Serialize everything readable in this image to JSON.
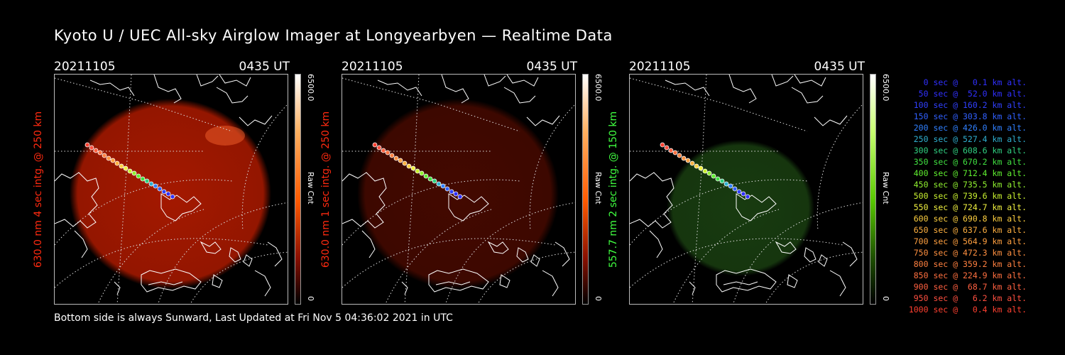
{
  "title": "Kyoto U / UEC All-sky Airglow Imager at Longyearbyen — Realtime Data",
  "footer": "Bottom side is always Sunward, Last Updated at Fri Nov  5 04:36:02 2021 in UTC",
  "panels": [
    {
      "date": "20211105",
      "time": "0435 UT",
      "label": "630.0 nm 4 sec intg. @ 250 km",
      "label_color": "#ff2a10",
      "scale_max": "6500.0",
      "scale_unit": "Raw Cnt",
      "scale_min": "0",
      "gradient": "linear-gradient(to bottom,#ffffff,#ffb060 25%,#ff5a00 55%,#8a1000 80%,#000000)",
      "glow_color": "#c81e00",
      "glow_opacity": 0.82
    },
    {
      "date": "20211105",
      "time": "0435 UT",
      "label": "630.0 nm 1 sec intg. @ 250 km",
      "label_color": "#ff2a10",
      "scale_max": "6500.0",
      "scale_unit": "Raw Cnt",
      "scale_min": "0",
      "gradient": "linear-gradient(to bottom,#ffffff,#ffb060 25%,#ff5a00 55%,#8a1000 80%,#000000)",
      "glow_color": "#5a0c00",
      "glow_opacity": 0.75
    },
    {
      "date": "20211105",
      "time": "0435 UT",
      "label": "557.7 nm 2 sec intg. @ 150 km",
      "label_color": "#40ff40",
      "scale_max": "6500.0",
      "scale_unit": "Raw Cnt",
      "scale_min": "0",
      "gradient": "linear-gradient(to bottom,#ffffff,#c8ff70 25%,#58c800 55%,#1e5000 80%,#000000)",
      "glow_color": "#1e4a14",
      "glow_opacity": 0.8
    }
  ],
  "legend": [
    {
      "text": "0 sec @   0.1 km alt.",
      "color": "#3030ff"
    },
    {
      "text": "50 sec @  52.0 km alt.",
      "color": "#3030ff"
    },
    {
      "text": "100 sec @ 160.2 km alt.",
      "color": "#3040ff"
    },
    {
      "text": "150 sec @ 303.8 km alt.",
      "color": "#3060ff"
    },
    {
      "text": "200 sec @ 426.0 km alt.",
      "color": "#3080ff"
    },
    {
      "text": "250 sec @ 527.4 km alt.",
      "color": "#30b0d0"
    },
    {
      "text": "300 sec @ 608.6 km alt.",
      "color": "#30d080"
    },
    {
      "text": "350 sec @ 670.2 km alt.",
      "color": "#40e040"
    },
    {
      "text": "400 sec @ 712.4 km alt.",
      "color": "#60f030"
    },
    {
      "text": "450 sec @ 735.5 km alt.",
      "color": "#90f030"
    },
    {
      "text": "500 sec @ 739.6 km alt.",
      "color": "#c8f030"
    },
    {
      "text": "550 sec @ 724.7 km alt.",
      "color": "#f0f040"
    },
    {
      "text": "600 sec @ 690.8 km alt.",
      "color": "#ffd040"
    },
    {
      "text": "650 sec @ 637.6 km alt.",
      "color": "#ffb040"
    },
    {
      "text": "700 sec @ 564.9 km alt.",
      "color": "#ffa040"
    },
    {
      "text": "750 sec @ 472.3 km alt.",
      "color": "#ff9040"
    },
    {
      "text": "800 sec @ 359.2 km alt.",
      "color": "#ff8040"
    },
    {
      "text": "850 sec @ 224.9 km alt.",
      "color": "#ff7040"
    },
    {
      "text": "900 sec @  68.7 km alt.",
      "color": "#ff6040"
    },
    {
      "text": "950 sec @   6.2 km alt.",
      "color": "#ff5040"
    },
    {
      "text": "1000 sec @   0.4 km alt.",
      "color": "#ff4030"
    }
  ]
}
